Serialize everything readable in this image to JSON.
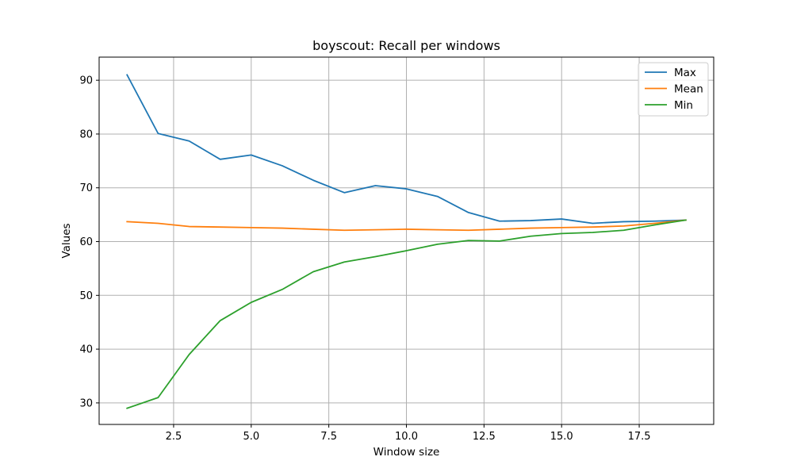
{
  "chart_data": {
    "type": "line",
    "title": "boyscout: Recall per windows",
    "xlabel": "Window size",
    "ylabel": "Values",
    "xlim": [
      0.1,
      19.9
    ],
    "ylim": [
      26,
      94.3
    ],
    "xticks": [
      2.5,
      5.0,
      7.5,
      10.0,
      12.5,
      15.0,
      17.5
    ],
    "xtick_labels": [
      "2.5",
      "5.0",
      "7.5",
      "10.0",
      "12.5",
      "15.0",
      "17.5"
    ],
    "yticks": [
      30,
      40,
      50,
      60,
      70,
      80,
      90
    ],
    "ytick_labels": [
      "30",
      "40",
      "50",
      "60",
      "70",
      "80",
      "90"
    ],
    "grid": true,
    "legend_position": "top-right",
    "x": [
      1,
      2,
      3,
      4,
      5,
      6,
      7,
      8,
      9,
      10,
      11,
      12,
      13,
      14,
      15,
      16,
      17,
      18,
      19
    ],
    "series": [
      {
        "name": "Max",
        "color": "#1f77b4",
        "values": [
          91.0,
          80.1,
          78.7,
          75.3,
          76.1,
          74.1,
          71.4,
          69.1,
          70.4,
          69.8,
          68.4,
          65.4,
          63.8,
          63.9,
          64.2,
          63.4,
          63.7,
          63.8,
          64.0
        ]
      },
      {
        "name": "Mean",
        "color": "#ff7f0e",
        "values": [
          63.7,
          63.4,
          62.8,
          62.7,
          62.6,
          62.5,
          62.3,
          62.1,
          62.2,
          62.3,
          62.2,
          62.1,
          62.3,
          62.5,
          62.6,
          62.7,
          62.9,
          63.4,
          64.0
        ]
      },
      {
        "name": "Min",
        "color": "#2ca02c",
        "values": [
          29.0,
          31.0,
          39.0,
          45.3,
          48.7,
          51.1,
          54.4,
          56.2,
          57.2,
          58.3,
          59.5,
          60.2,
          60.1,
          61.0,
          61.5,
          61.7,
          62.1,
          63.1,
          64.0
        ]
      }
    ]
  }
}
